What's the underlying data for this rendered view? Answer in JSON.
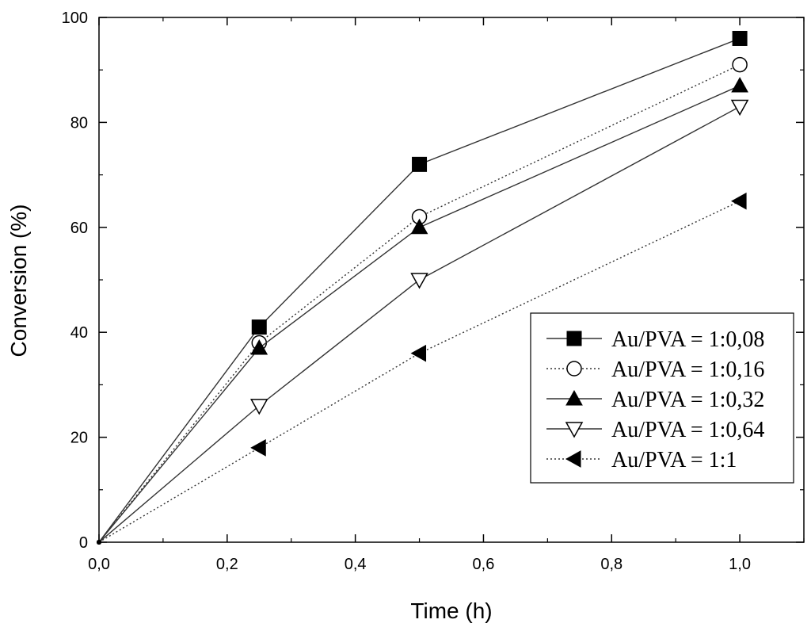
{
  "chart_data": {
    "type": "line",
    "title": "",
    "xlabel": "Time (h)",
    "ylabel": "Conversion (%)",
    "xlim": [
      0,
      1.1
    ],
    "ylim": [
      0,
      100
    ],
    "x_ticks": [
      {
        "value": 0.0,
        "label": "0,0"
      },
      {
        "value": 0.2,
        "label": "0,2"
      },
      {
        "value": 0.4,
        "label": "0,4"
      },
      {
        "value": 0.6,
        "label": "0,6"
      },
      {
        "value": 0.8,
        "label": "0,8"
      },
      {
        "value": 1.0,
        "label": "1,0"
      }
    ],
    "y_ticks": [
      {
        "value": 0,
        "label": "0"
      },
      {
        "value": 20,
        "label": "20"
      },
      {
        "value": 40,
        "label": "40"
      },
      {
        "value": 60,
        "label": "60"
      },
      {
        "value": 80,
        "label": "80"
      },
      {
        "value": 100,
        "label": "100"
      }
    ],
    "grid": false,
    "legend_position": "lower-right",
    "x": [
      0,
      0.25,
      0.5,
      1.0
    ],
    "series": [
      {
        "name": "Au/PVA = 1:0,08",
        "values": [
          0,
          41,
          72,
          96
        ],
        "marker": "square-filled",
        "line": "solid"
      },
      {
        "name": "Au/PVA = 1:0,16",
        "values": [
          0,
          38,
          62,
          91
        ],
        "marker": "circle-open",
        "line": "dotted"
      },
      {
        "name": "Au/PVA = 1:0,32",
        "values": [
          0,
          37,
          60,
          87
        ],
        "marker": "triangle-up-filled",
        "line": "solid"
      },
      {
        "name": "Au/PVA = 1:0,64",
        "values": [
          0,
          26,
          50,
          83
        ],
        "marker": "triangle-down-open",
        "line": "solid"
      },
      {
        "name": "Au/PVA = 1:1",
        "values": [
          0,
          18,
          36,
          65
        ],
        "marker": "triangle-left-filled",
        "line": "dotted"
      }
    ],
    "colors": {
      "line": "#333333",
      "marker": "#000000",
      "axis": "#000000",
      "background": "#ffffff"
    }
  }
}
